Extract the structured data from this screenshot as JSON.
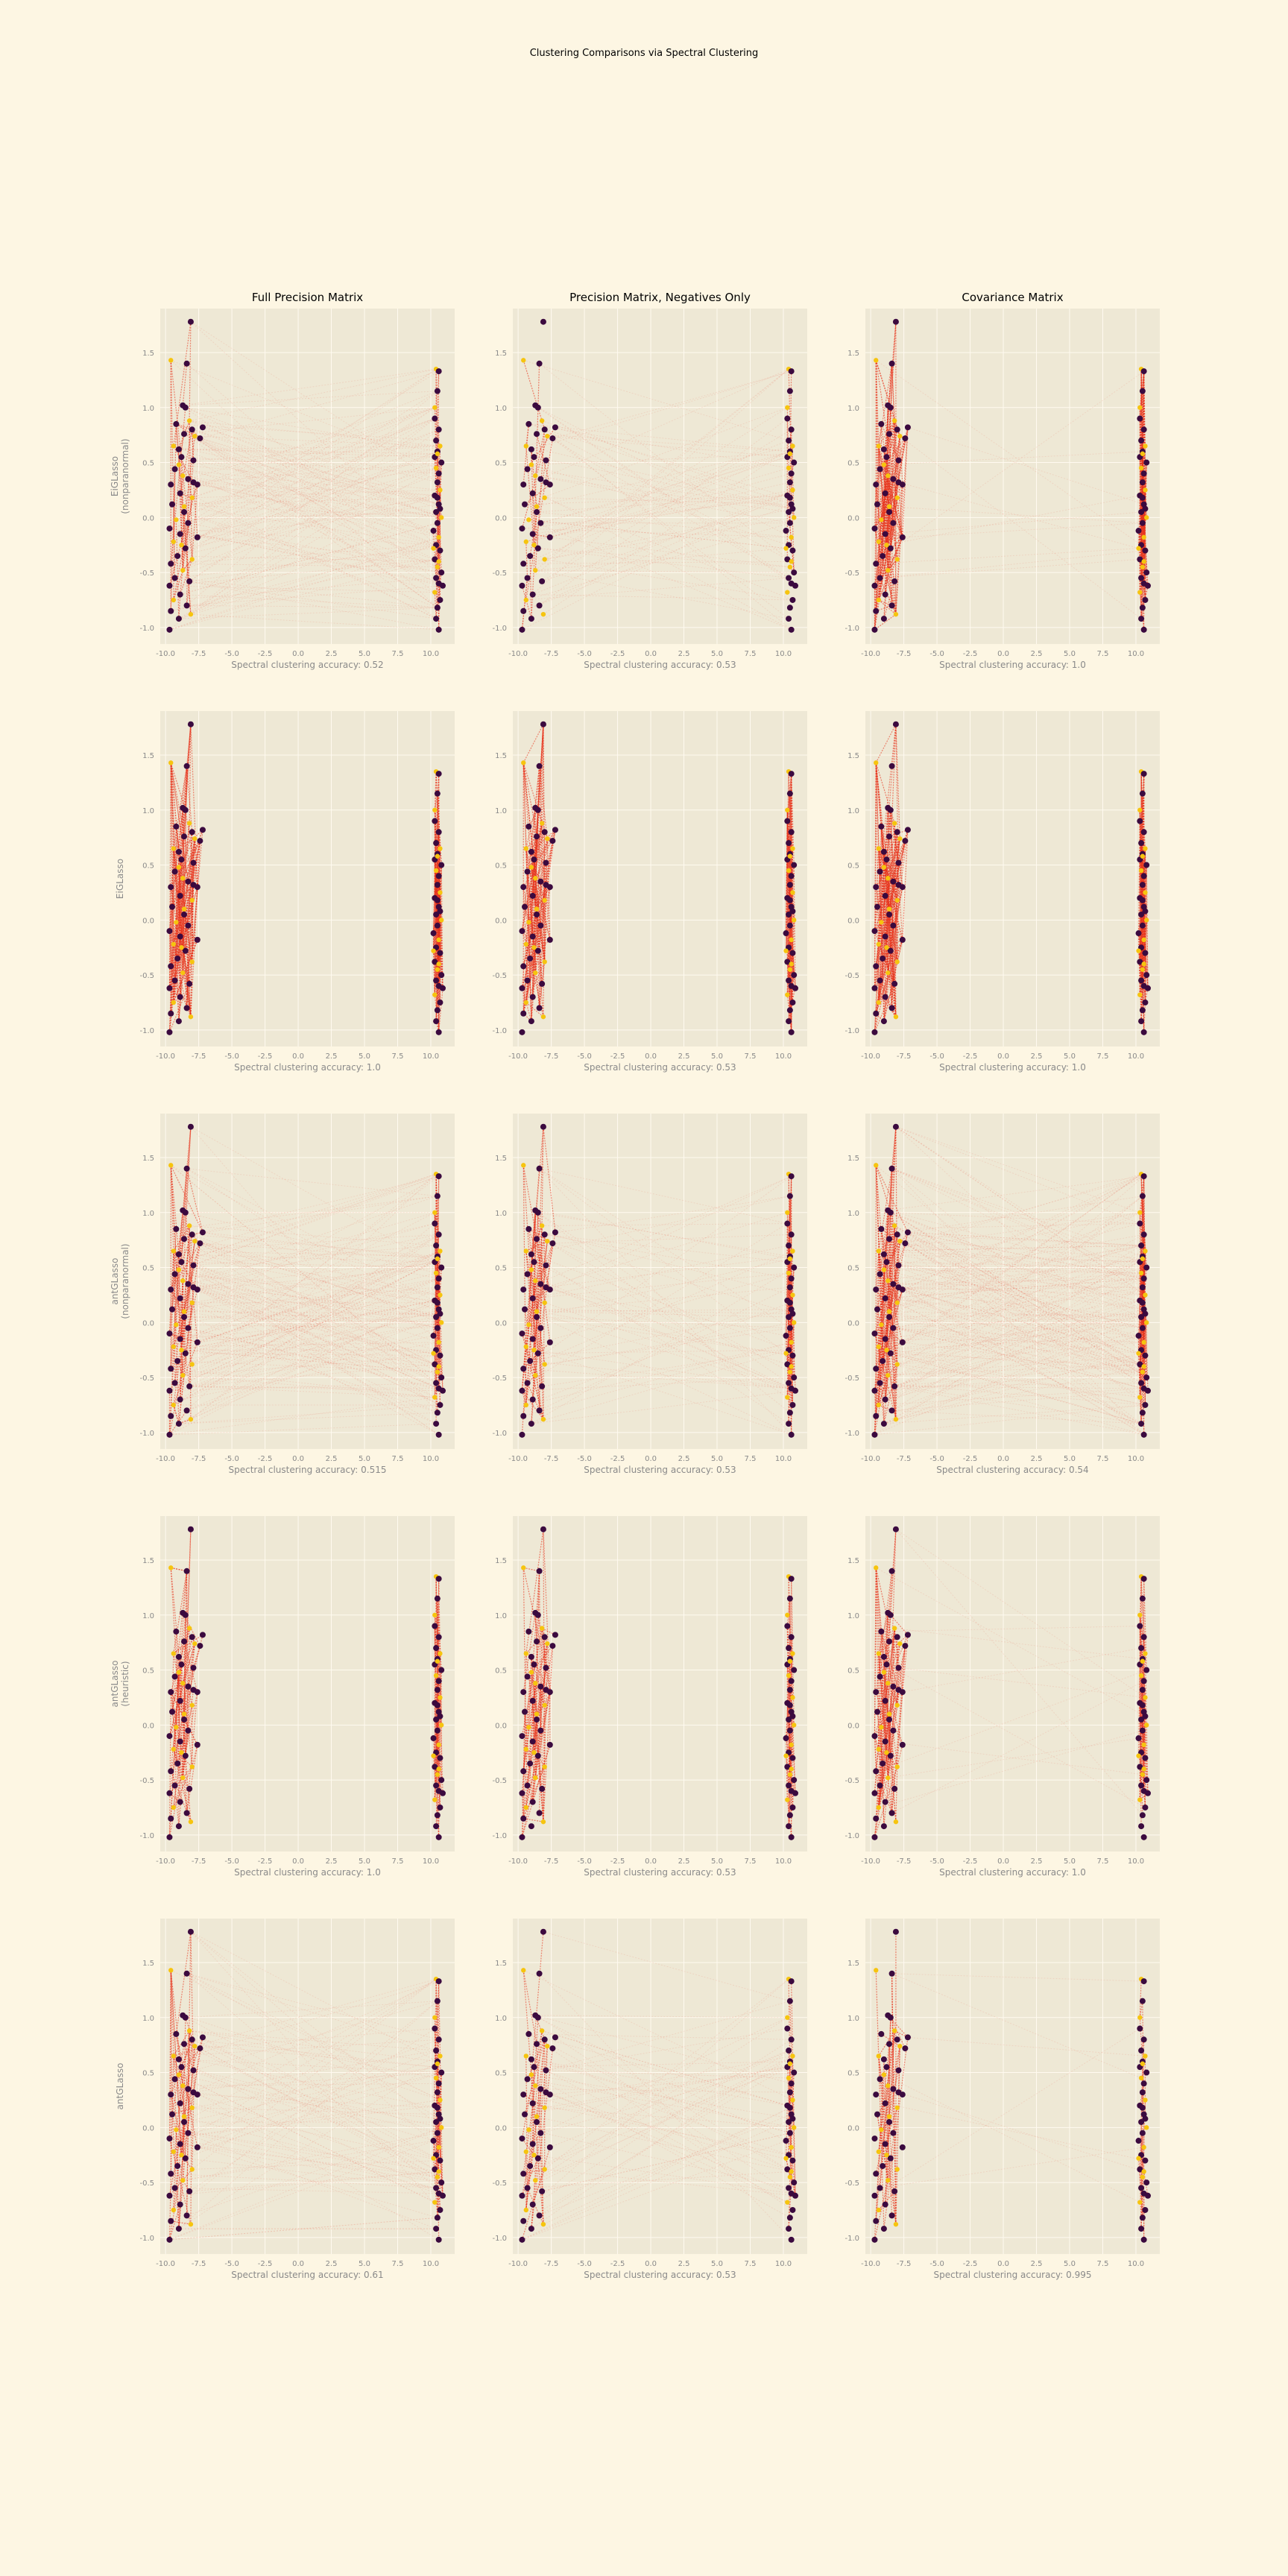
{
  "title": "Clustering Comparisons via Spectral Clustering",
  "colors": {
    "figure_bg": "#fdf6e3",
    "axes_bg": "#eee8d5",
    "grid": "#fffaf0",
    "tick_text": "#8a8a8a",
    "edge": "#e8331c",
    "point_dark": "#3b0a3f",
    "point_yellow": "#f6c40f"
  },
  "column_titles": [
    "Full Precision Matrix",
    "Precision Matrix, Negatives Only",
    "Covariance Matrix"
  ],
  "row_labels": [
    [
      "EiGLasso",
      "(nonparanormal)"
    ],
    [
      "EiGLasso"
    ],
    [
      "antGLasso",
      "(nonparanormal)"
    ],
    [
      "antGLasso",
      "(heuristic)"
    ],
    [
      "antGLasso"
    ]
  ],
  "chart_data": {
    "type": "scatter",
    "xlim": [
      -10.4,
      11.8
    ],
    "ylim": [
      -1.15,
      1.9
    ],
    "xticks": [
      "-10.0",
      "-7.5",
      "-5.0",
      "-2.5",
      "0.0",
      "2.5",
      "5.0",
      "7.5",
      "10.0"
    ],
    "yticks": [
      "-1.0",
      "-0.5",
      "0.0",
      "0.5",
      "1.0",
      "1.5"
    ],
    "grid": true,
    "panels": [
      {
        "row": 0,
        "col": 0,
        "xlabel": "Spectral clustering accuracy: 0.52",
        "cross": 0.32,
        "within": 0.2,
        "within_yellow": 0.2
      },
      {
        "row": 0,
        "col": 1,
        "xlabel": "Spectral clustering accuracy: 0.53",
        "cross": 0.18,
        "within": 0.1,
        "within_yellow": 0.1
      },
      {
        "row": 0,
        "col": 2,
        "xlabel": "Spectral clustering accuracy: 1.0",
        "cross": 0.03,
        "within": 0.7,
        "within_yellow": 0.9
      },
      {
        "row": 1,
        "col": 0,
        "xlabel": "Spectral clustering accuracy: 1.0",
        "cross": 0.0,
        "within": 0.8,
        "within_yellow": 0.8
      },
      {
        "row": 1,
        "col": 1,
        "xlabel": "Spectral clustering accuracy: 0.53",
        "cross": 0.0,
        "within": 0.7,
        "within_yellow": 0.7
      },
      {
        "row": 1,
        "col": 2,
        "xlabel": "Spectral clustering accuracy: 1.0",
        "cross": 0.0,
        "within": 0.75,
        "within_yellow": 0.95
      },
      {
        "row": 2,
        "col": 0,
        "xlabel": "Spectral clustering accuracy: 0.515",
        "cross": 0.38,
        "within": 0.35,
        "within_yellow": 0.35
      },
      {
        "row": 2,
        "col": 1,
        "xlabel": "Spectral clustering accuracy: 0.53",
        "cross": 0.15,
        "within": 0.35,
        "within_yellow": 0.35
      },
      {
        "row": 2,
        "col": 2,
        "xlabel": "Spectral clustering accuracy: 0.54",
        "cross": 0.45,
        "within": 0.55,
        "within_yellow": 0.7
      },
      {
        "row": 3,
        "col": 0,
        "xlabel": "Spectral clustering accuracy: 1.0",
        "cross": 0.0,
        "within": 0.35,
        "within_yellow": 0.5
      },
      {
        "row": 3,
        "col": 1,
        "xlabel": "Spectral clustering accuracy: 0.53",
        "cross": 0.0,
        "within": 0.35,
        "within_yellow": 0.5
      },
      {
        "row": 3,
        "col": 2,
        "xlabel": "Spectral clustering accuracy: 1.0",
        "cross": 0.03,
        "within": 0.35,
        "within_yellow": 0.75
      },
      {
        "row": 4,
        "col": 0,
        "xlabel": "Spectral clustering accuracy: 0.61",
        "cross": 0.22,
        "within": 0.25,
        "within_yellow": 0.3
      },
      {
        "row": 4,
        "col": 1,
        "xlabel": "Spectral clustering accuracy: 0.53",
        "cross": 0.15,
        "within": 0.15,
        "within_yellow": 0.15
      },
      {
        "row": 4,
        "col": 2,
        "xlabel": "Spectral clustering accuracy: 0.995",
        "cross": 0.02,
        "within": 0.15,
        "within_yellow": 0.3
      }
    ],
    "cluster_a": {
      "x_range": [
        -9.8,
        -6.8
      ],
      "points": [
        [
          -9.6,
          1.43,
          "y"
        ],
        [
          -8.1,
          1.78,
          "d"
        ],
        [
          -8.4,
          1.4,
          "d"
        ],
        [
          -8.7,
          1.02,
          "d"
        ],
        [
          -8.5,
          1.0,
          "d"
        ],
        [
          -8.2,
          0.88,
          "y"
        ],
        [
          -8.0,
          0.8,
          "d"
        ],
        [
          -7.2,
          0.82,
          "d"
        ],
        [
          -8.6,
          0.76,
          "d"
        ],
        [
          -7.8,
          0.74,
          "y"
        ],
        [
          -7.4,
          0.72,
          "d"
        ],
        [
          -9.4,
          0.65,
          "y"
        ],
        [
          -9.0,
          0.62,
          "d"
        ],
        [
          -8.8,
          0.55,
          "d"
        ],
        [
          -7.9,
          0.52,
          "d"
        ],
        [
          -9.3,
          0.44,
          "d"
        ],
        [
          -8.7,
          0.38,
          "y"
        ],
        [
          -8.3,
          0.35,
          "d"
        ],
        [
          -7.9,
          0.32,
          "d"
        ],
        [
          -9.6,
          0.3,
          "d"
        ],
        [
          -8.9,
          0.22,
          "d"
        ],
        [
          -8.0,
          0.18,
          "y"
        ],
        [
          -9.5,
          0.12,
          "d"
        ],
        [
          -8.6,
          0.05,
          "d"
        ],
        [
          -9.2,
          -0.02,
          "y"
        ],
        [
          -8.3,
          -0.05,
          "d"
        ],
        [
          -9.7,
          -0.1,
          "d"
        ],
        [
          -8.9,
          -0.15,
          "d"
        ],
        [
          -7.6,
          -0.18,
          "d"
        ],
        [
          -9.4,
          -0.22,
          "y"
        ],
        [
          -8.5,
          -0.28,
          "d"
        ],
        [
          -9.1,
          -0.35,
          "d"
        ],
        [
          -9.6,
          -0.42,
          "d"
        ],
        [
          -8.7,
          -0.48,
          "y"
        ],
        [
          -9.3,
          -0.55,
          "d"
        ],
        [
          -8.2,
          -0.58,
          "d"
        ],
        [
          -9.7,
          -0.62,
          "d"
        ],
        [
          -8.9,
          -0.7,
          "d"
        ],
        [
          -9.4,
          -0.75,
          "y"
        ],
        [
          -8.4,
          -0.8,
          "d"
        ],
        [
          -9.6,
          -0.85,
          "d"
        ],
        [
          -8.1,
          -0.88,
          "y"
        ],
        [
          -9.0,
          -0.92,
          "d"
        ],
        [
          -9.7,
          -1.02,
          "d"
        ],
        [
          -8.6,
          0.1,
          "y"
        ],
        [
          -9.0,
          0.48,
          "y"
        ],
        [
          -8.0,
          -0.38,
          "y"
        ],
        [
          -9.2,
          0.85,
          "d"
        ],
        [
          -7.6,
          0.3,
          "d"
        ],
        [
          -8.8,
          -0.25,
          "y"
        ]
      ]
    },
    "cluster_b": {
      "x_range": [
        9.9,
        11.2
      ],
      "points": [
        [
          10.4,
          1.35,
          "y"
        ],
        [
          10.6,
          1.33,
          "d"
        ],
        [
          10.5,
          1.15,
          "d"
        ],
        [
          10.3,
          1.0,
          "y"
        ],
        [
          10.6,
          0.8,
          "d"
        ],
        [
          10.4,
          0.7,
          "d"
        ],
        [
          10.7,
          0.65,
          "y"
        ],
        [
          10.5,
          0.6,
          "d"
        ],
        [
          10.3,
          0.55,
          "d"
        ],
        [
          10.8,
          0.5,
          "d"
        ],
        [
          10.4,
          0.45,
          "y"
        ],
        [
          10.6,
          0.4,
          "d"
        ],
        [
          10.5,
          0.32,
          "d"
        ],
        [
          10.7,
          0.25,
          "y"
        ],
        [
          10.3,
          0.2,
          "d"
        ],
        [
          10.6,
          0.12,
          "d"
        ],
        [
          10.4,
          0.05,
          "d"
        ],
        [
          10.8,
          0.0,
          "y"
        ],
        [
          10.5,
          -0.05,
          "d"
        ],
        [
          10.2,
          -0.12,
          "d"
        ],
        [
          10.6,
          -0.18,
          "y"
        ],
        [
          10.4,
          -0.25,
          "d"
        ],
        [
          10.7,
          -0.3,
          "d"
        ],
        [
          10.3,
          -0.38,
          "d"
        ],
        [
          10.5,
          -0.45,
          "y"
        ],
        [
          10.8,
          -0.5,
          "d"
        ],
        [
          10.4,
          -0.55,
          "d"
        ],
        [
          10.6,
          -0.6,
          "d"
        ],
        [
          10.3,
          -0.68,
          "y"
        ],
        [
          10.7,
          -0.75,
          "d"
        ],
        [
          10.5,
          -0.82,
          "d"
        ],
        [
          10.4,
          -0.92,
          "d"
        ],
        [
          10.6,
          -1.02,
          "d"
        ],
        [
          10.9,
          -0.62,
          "d"
        ],
        [
          10.2,
          -0.28,
          "y"
        ],
        [
          10.5,
          0.58,
          "y"
        ],
        [
          10.7,
          0.08,
          "d"
        ],
        [
          10.3,
          0.9,
          "d"
        ],
        [
          10.6,
          -0.4,
          "y"
        ],
        [
          10.5,
          0.18,
          "d"
        ]
      ]
    }
  }
}
